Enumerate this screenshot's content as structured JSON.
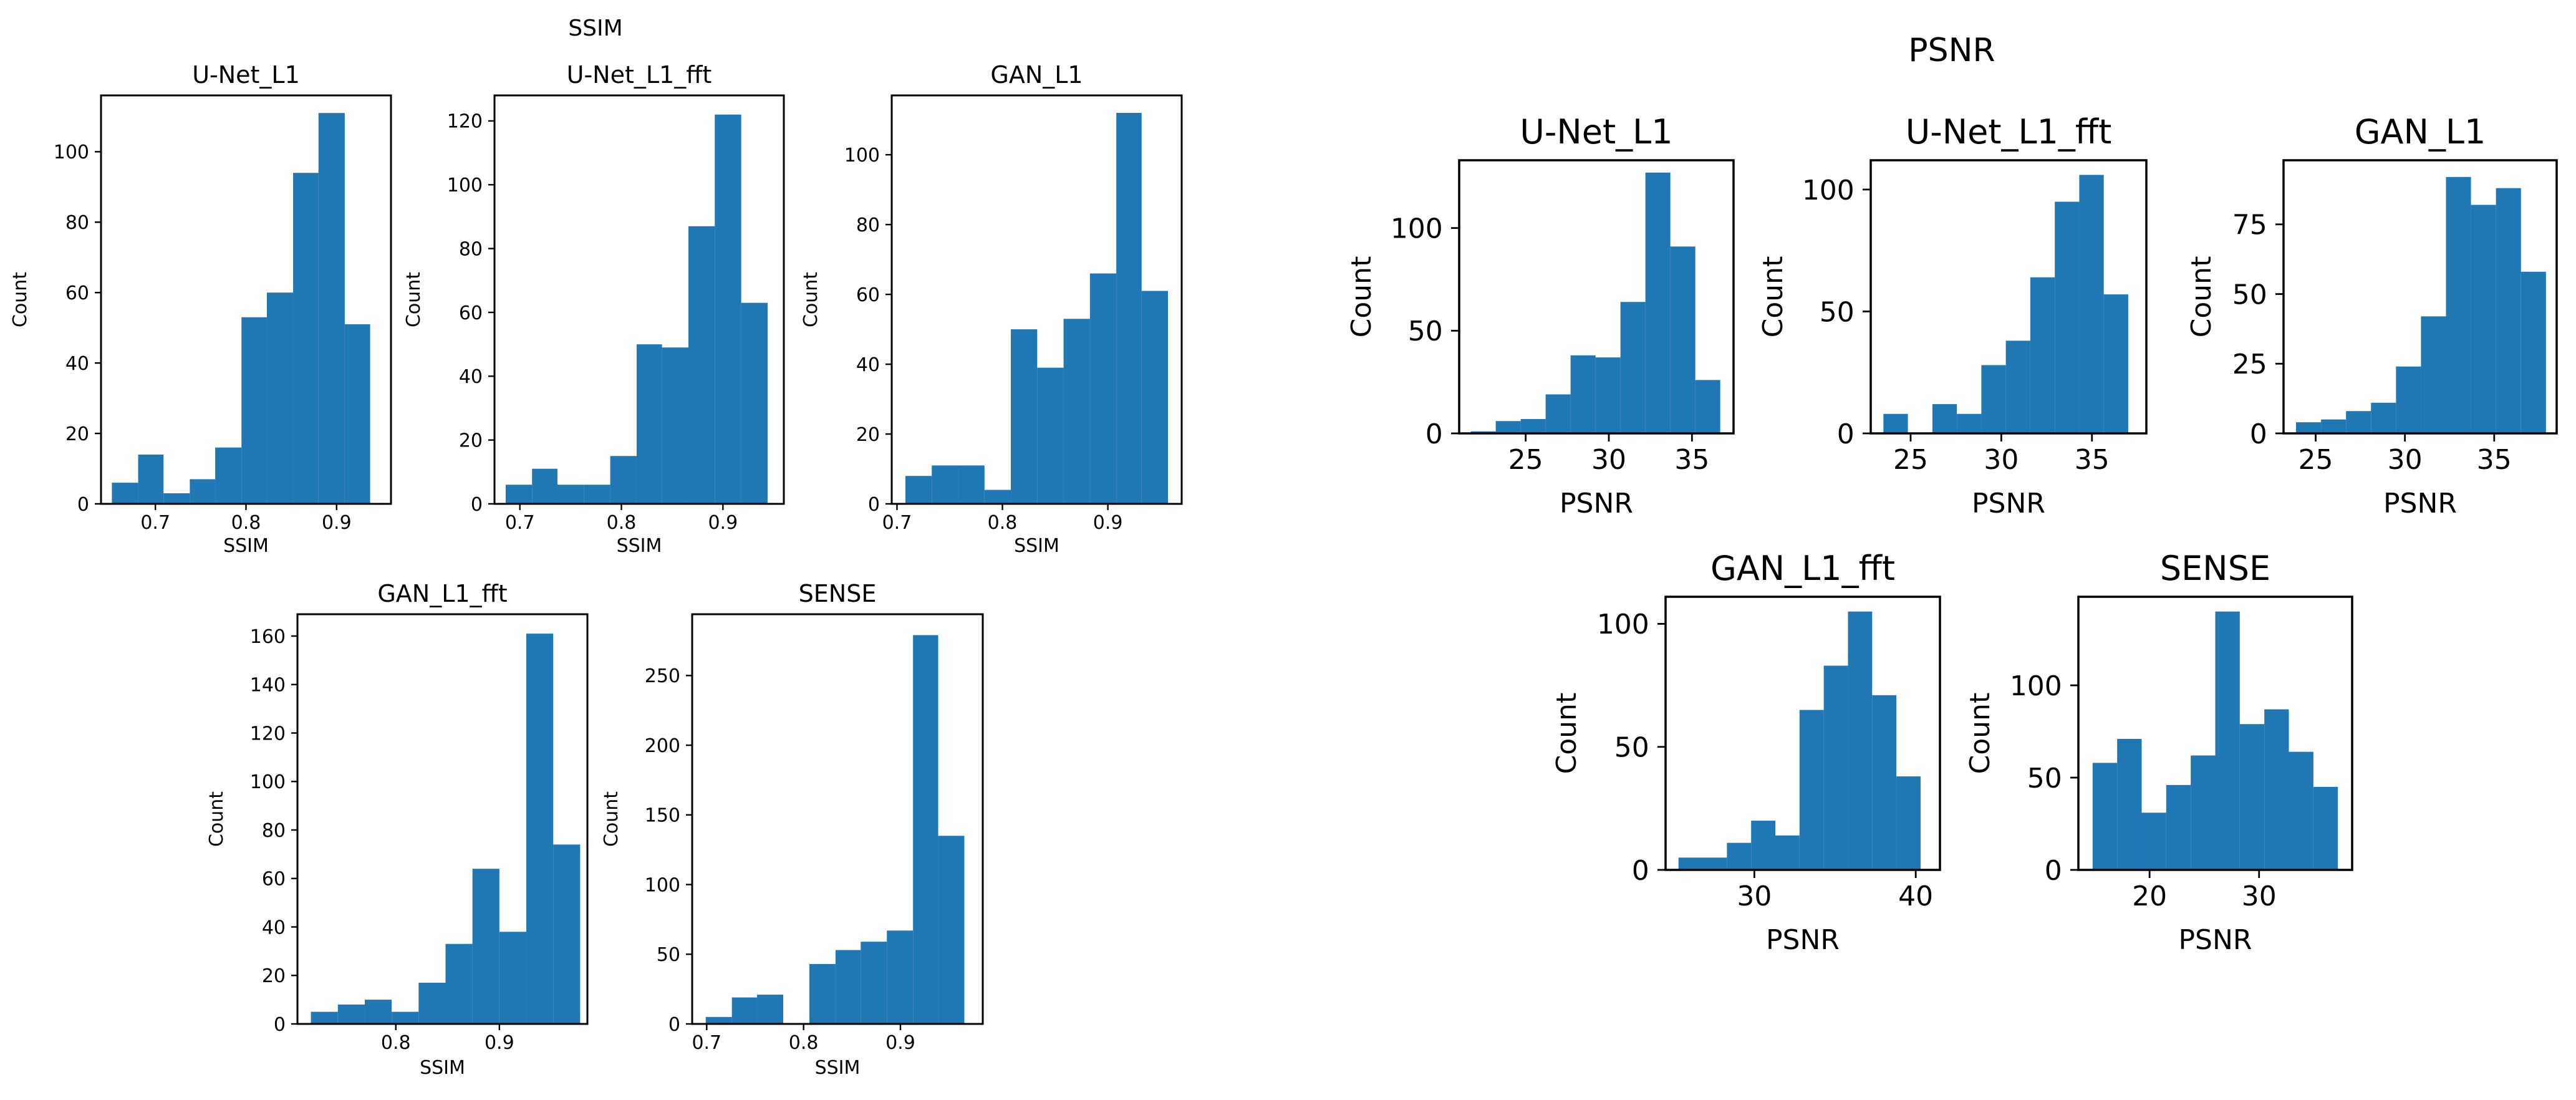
{
  "colors": {
    "bar": "#1f77b4",
    "axes": "#000000",
    "background": "#ffffff"
  },
  "suptitles": {
    "ssim": "SSIM",
    "psnr": "PSNR"
  },
  "chart_data": [
    {
      "id": "ssim-unet-l1",
      "type": "bar",
      "title": "U-Net_L1",
      "xlabel": "SSIM",
      "ylabel": "Count",
      "xlim": [
        0.64,
        0.96
      ],
      "ylim": [
        0,
        116
      ],
      "xticks": [
        0.7,
        0.8,
        0.9
      ],
      "xtick_labels": [
        "0.7",
        "0.8",
        "0.9"
      ],
      "yticks": [
        0,
        20,
        40,
        60,
        80,
        100
      ],
      "ytick_labels": [
        "0",
        "20",
        "40",
        "60",
        "80",
        "100"
      ],
      "bin_edges": [
        0.652,
        0.681,
        0.709,
        0.738,
        0.766,
        0.795,
        0.823,
        0.852,
        0.88,
        0.909,
        0.937
      ],
      "values": [
        6,
        14,
        3,
        7,
        16,
        53,
        60,
        94,
        111,
        51
      ]
    },
    {
      "id": "ssim-unet-l1-fft",
      "type": "bar",
      "title": "U-Net_L1_fft",
      "xlabel": "SSIM",
      "ylabel": "Count",
      "xlim": [
        0.675,
        0.96
      ],
      "ylim": [
        0,
        128
      ],
      "xticks": [
        0.7,
        0.8,
        0.9
      ],
      "xtick_labels": [
        "0.7",
        "0.8",
        "0.9"
      ],
      "yticks": [
        0,
        20,
        40,
        60,
        80,
        100,
        120
      ],
      "ytick_labels": [
        "0",
        "20",
        "40",
        "60",
        "80",
        "100",
        "120"
      ],
      "bin_edges": [
        0.686,
        0.712,
        0.737,
        0.763,
        0.789,
        0.815,
        0.84,
        0.866,
        0.892,
        0.918,
        0.944
      ],
      "values": [
        6,
        11,
        6,
        6,
        15,
        50,
        49,
        87,
        122,
        63
      ]
    },
    {
      "id": "ssim-gan-l1",
      "type": "bar",
      "title": "GAN_L1",
      "xlabel": "SSIM",
      "ylabel": "Count",
      "xlim": [
        0.695,
        0.97
      ],
      "ylim": [
        0,
        117
      ],
      "xticks": [
        0.7,
        0.8,
        0.9
      ],
      "xtick_labels": [
        "0.7",
        "0.8",
        "0.9"
      ],
      "yticks": [
        0,
        20,
        40,
        60,
        80,
        100
      ],
      "ytick_labels": [
        "0",
        "20",
        "40",
        "60",
        "80",
        "100"
      ],
      "bin_edges": [
        0.708,
        0.733,
        0.758,
        0.783,
        0.808,
        0.833,
        0.858,
        0.883,
        0.908,
        0.932,
        0.957
      ],
      "values": [
        8,
        11,
        11,
        4,
        50,
        39,
        53,
        66,
        112,
        61
      ]
    },
    {
      "id": "ssim-gan-l1-fft",
      "type": "bar",
      "title": "GAN_L1_fft",
      "xlabel": "SSIM",
      "ylabel": "Count",
      "xlim": [
        0.705,
        0.985
      ],
      "ylim": [
        0,
        169
      ],
      "xticks": [
        0.8,
        0.9
      ],
      "xtick_labels": [
        "0.8",
        "0.9"
      ],
      "yticks": [
        0,
        20,
        40,
        60,
        80,
        100,
        120,
        140,
        160
      ],
      "ytick_labels": [
        "0",
        "20",
        "40",
        "60",
        "80",
        "100",
        "120",
        "140",
        "160"
      ],
      "bin_edges": [
        0.718,
        0.744,
        0.77,
        0.796,
        0.822,
        0.848,
        0.874,
        0.9,
        0.926,
        0.952,
        0.978
      ],
      "values": [
        5,
        8,
        10,
        5,
        17,
        33,
        64,
        38,
        161,
        74
      ]
    },
    {
      "id": "ssim-sense",
      "type": "bar",
      "title": "SENSE",
      "xlabel": "SSIM",
      "ylabel": "Count",
      "xlim": [
        0.685,
        0.985
      ],
      "ylim": [
        0,
        294
      ],
      "xticks": [
        0.7,
        0.8,
        0.9
      ],
      "xtick_labels": [
        "0.7",
        "0.8",
        "0.9"
      ],
      "yticks": [
        0,
        50,
        100,
        150,
        200,
        250
      ],
      "ytick_labels": [
        "0",
        "50",
        "100",
        "150",
        "200",
        "250"
      ],
      "bin_edges": [
        0.699,
        0.726,
        0.752,
        0.779,
        0.806,
        0.833,
        0.859,
        0.886,
        0.913,
        0.939,
        0.966
      ],
      "values": [
        5,
        19,
        21,
        0,
        43,
        53,
        59,
        67,
        279,
        135
      ]
    },
    {
      "id": "psnr-unet-l1",
      "type": "bar",
      "title": "U-Net_L1",
      "xlabel": "PSNR",
      "ylabel": "Count",
      "xlim": [
        21,
        37.5
      ],
      "ylim": [
        0,
        133
      ],
      "xticks": [
        25,
        30,
        35
      ],
      "xtick_labels": [
        "25",
        "30",
        "35"
      ],
      "yticks": [
        0,
        50,
        100
      ],
      "ytick_labels": [
        "0",
        "50",
        "100"
      ],
      "bin_edges": [
        21.7,
        23.2,
        24.7,
        26.2,
        27.7,
        29.2,
        30.7,
        32.2,
        33.7,
        35.2,
        36.7
      ],
      "values": [
        1,
        6,
        7,
        19,
        38,
        37,
        64,
        127,
        91,
        26
      ]
    },
    {
      "id": "psnr-unet-l1-fft",
      "type": "bar",
      "title": "U-Net_L1_fft",
      "xlabel": "PSNR",
      "ylabel": "Count",
      "xlim": [
        22.8,
        38
      ],
      "ylim": [
        0,
        112
      ],
      "xticks": [
        25,
        30,
        35
      ],
      "xtick_labels": [
        "25",
        "30",
        "35"
      ],
      "bin_edges": [
        23.5,
        24.85,
        26.2,
        27.55,
        28.9,
        30.25,
        31.6,
        32.95,
        34.3,
        35.65,
        37.0
      ],
      "yticks": [
        0,
        50,
        100
      ],
      "ytick_labels": [
        "0",
        "50",
        "100"
      ],
      "values": [
        8,
        0,
        12,
        8,
        28,
        38,
        64,
        95,
        106,
        57
      ]
    },
    {
      "id": "psnr-gan-l1",
      "type": "bar",
      "title": "GAN_L1",
      "xlabel": "PSNR",
      "ylabel": "Count",
      "xlim": [
        23.2,
        38.5
      ],
      "ylim": [
        0,
        98
      ],
      "xticks": [
        25,
        30,
        35
      ],
      "xtick_labels": [
        "25",
        "30",
        "35"
      ],
      "yticks": [
        0,
        25,
        50,
        75
      ],
      "ytick_labels": [
        "0",
        "25",
        "50",
        "75"
      ],
      "bin_edges": [
        23.9,
        25.3,
        26.7,
        28.1,
        29.5,
        30.9,
        32.3,
        33.7,
        35.1,
        36.5,
        37.9
      ],
      "values": [
        4,
        5,
        8,
        11,
        24,
        42,
        92,
        82,
        88,
        58
      ]
    },
    {
      "id": "psnr-gan-l1-fft",
      "type": "bar",
      "title": "GAN_L1_fft",
      "xlabel": "PSNR",
      "ylabel": "Count",
      "xlim": [
        24.5,
        41.5
      ],
      "ylim": [
        0,
        111
      ],
      "xticks": [
        30,
        40
      ],
      "xtick_labels": [
        "30",
        "40"
      ],
      "yticks": [
        0,
        50,
        100
      ],
      "ytick_labels": [
        "0",
        "50",
        "100"
      ],
      "bin_edges": [
        25.3,
        26.8,
        28.3,
        29.8,
        31.3,
        32.8,
        34.3,
        35.8,
        37.3,
        38.8,
        40.3
      ],
      "values": [
        5,
        5,
        11,
        20,
        14,
        65,
        83,
        105,
        71,
        38
      ]
    },
    {
      "id": "psnr-sense",
      "type": "bar",
      "title": "SENSE",
      "xlabel": "PSNR",
      "ylabel": "Count",
      "xlim": [
        13.5,
        38.5
      ],
      "ylim": [
        0,
        148
      ],
      "xticks": [
        20,
        30
      ],
      "xtick_labels": [
        "20",
        "30"
      ],
      "yticks": [
        0,
        50,
        100
      ],
      "ytick_labels": [
        "0",
        "50",
        "100"
      ],
      "bin_edges": [
        14.8,
        17.04,
        19.28,
        21.52,
        23.76,
        26.0,
        28.24,
        30.48,
        32.72,
        34.96,
        37.2
      ],
      "values": [
        58,
        71,
        31,
        46,
        62,
        140,
        79,
        87,
        64,
        45
      ]
    }
  ]
}
